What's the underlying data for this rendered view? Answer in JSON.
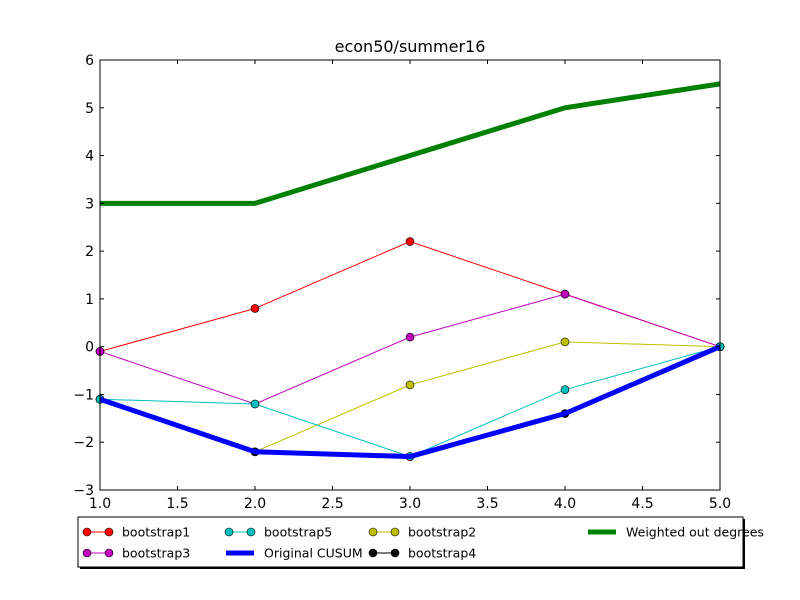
{
  "chart_data": {
    "type": "line",
    "title": "econ50/summer16",
    "xlabel": "",
    "ylabel": "",
    "xlim": [
      1.0,
      5.0
    ],
    "ylim": [
      -3,
      6
    ],
    "grid": false,
    "legend_position": "below plot",
    "x_ticks": [
      "1.0",
      "1.5",
      "2.0",
      "2.5",
      "3.0",
      "3.5",
      "4.0",
      "4.5",
      "5.0"
    ],
    "y_ticks": [
      "−3",
      "−2",
      "−1",
      "0",
      "1",
      "2",
      "3",
      "4",
      "5",
      "6"
    ],
    "x": [
      1,
      2,
      3,
      4,
      5
    ],
    "series": [
      {
        "name": "bootstrap1",
        "color": "#ff0000",
        "marker": true,
        "width": 1,
        "values": [
          -0.1,
          0.8,
          2.2,
          1.1,
          0.0
        ]
      },
      {
        "name": "bootstrap2",
        "color": "#bfbf00",
        "marker": true,
        "width": 1,
        "values": [
          -1.1,
          -2.2,
          -0.8,
          0.1,
          0.0
        ]
      },
      {
        "name": "bootstrap3",
        "color": "#bf00bf",
        "marker": true,
        "width": 1,
        "values": [
          -0.1,
          -1.2,
          0.2,
          1.1,
          0.0
        ]
      },
      {
        "name": "bootstrap4",
        "color": "#000000",
        "marker": true,
        "width": 1,
        "values": [
          -1.1,
          -2.2,
          -2.3,
          -1.4,
          0.0
        ]
      },
      {
        "name": "bootstrap5",
        "color": "#00bfbf",
        "marker": true,
        "width": 1,
        "values": [
          -1.1,
          -1.2,
          -2.3,
          -0.9,
          0.0
        ]
      },
      {
        "name": "Weighted out degrees",
        "color": "#008000",
        "marker": false,
        "width": 5,
        "values": [
          3.0,
          3.0,
          4.0,
          5.0,
          5.5
        ]
      },
      {
        "name": "Original CUSUM",
        "color": "#0000ff",
        "marker": false,
        "width": 5,
        "values": [
          -1.1,
          -2.2,
          -2.3,
          -1.4,
          0.0
        ]
      }
    ],
    "legend_order": [
      0,
      2,
      4,
      6,
      1,
      3,
      5
    ]
  }
}
